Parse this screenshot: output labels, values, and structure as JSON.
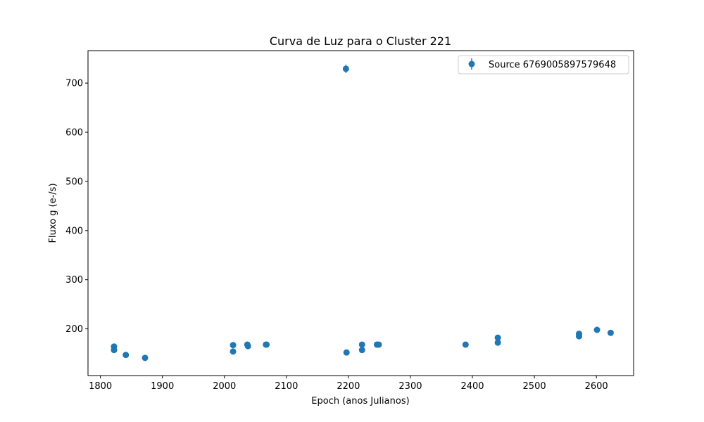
{
  "chart_data": {
    "type": "scatter",
    "title": "Curva de Luz para o Cluster 221",
    "xlabel": "Epoch (anos Julianos)",
    "ylabel": "Fluxo g (e-/s)",
    "xlim": [
      1780,
      2660
    ],
    "ylim": [
      105,
      766
    ],
    "xticks": [
      1800,
      1900,
      2000,
      2100,
      2200,
      2300,
      2400,
      2500,
      2600
    ],
    "yticks": [
      200,
      300,
      400,
      500,
      600,
      700
    ],
    "grid": false,
    "legend_position": "top-right",
    "color": "#1f77b4",
    "series": [
      {
        "name": "Source 6769005897579648",
        "points": [
          {
            "x": 1822,
            "y": 164
          },
          {
            "x": 1822,
            "y": 157
          },
          {
            "x": 1841,
            "y": 147
          },
          {
            "x": 1872,
            "y": 141
          },
          {
            "x": 2014,
            "y": 167
          },
          {
            "x": 2014,
            "y": 154
          },
          {
            "x": 2037,
            "y": 168
          },
          {
            "x": 2038,
            "y": 165
          },
          {
            "x": 2067,
            "y": 168
          },
          {
            "x": 2068,
            "y": 168
          },
          {
            "x": 2196,
            "y": 729
          },
          {
            "x": 2197,
            "y": 152
          },
          {
            "x": 2222,
            "y": 168
          },
          {
            "x": 2222,
            "y": 157
          },
          {
            "x": 2246,
            "y": 168
          },
          {
            "x": 2249,
            "y": 168
          },
          {
            "x": 2389,
            "y": 168
          },
          {
            "x": 2441,
            "y": 182
          },
          {
            "x": 2441,
            "y": 172
          },
          {
            "x": 2572,
            "y": 190
          },
          {
            "x": 2572,
            "y": 185
          },
          {
            "x": 2601,
            "y": 198
          },
          {
            "x": 2623,
            "y": 192
          }
        ]
      }
    ]
  }
}
